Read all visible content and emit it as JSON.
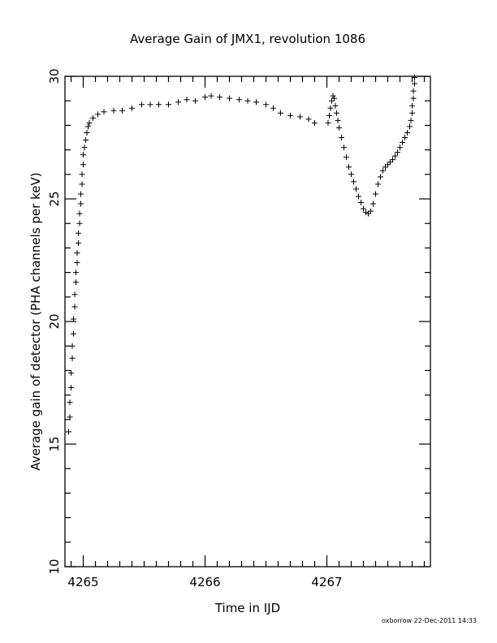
{
  "chart_data": {
    "type": "scatter",
    "title": "Average Gain of JMX1, revolution 1086",
    "xlabel": "Time in IJD",
    "ylabel": "Average gain of detector (PHA channels per keV)",
    "xlim": [
      4264.85,
      4267.85
    ],
    "ylim": [
      10,
      30
    ],
    "xticks": [
      4265,
      4266,
      4267
    ],
    "xtick_labels": [
      "4265",
      "4266",
      "4267"
    ],
    "yticks": [
      10,
      15,
      20,
      25,
      30
    ],
    "ytick_labels": [
      "10",
      "15",
      "20",
      "25",
      "30"
    ],
    "marker": "plus",
    "grid": false,
    "series": [
      {
        "points": [
          [
            4264.88,
            15.5
          ],
          [
            4264.89,
            16.1
          ],
          [
            4264.89,
            16.7
          ],
          [
            4264.9,
            17.3
          ],
          [
            4264.9,
            17.9
          ],
          [
            4264.91,
            18.5
          ],
          [
            4264.91,
            19.0
          ],
          [
            4264.92,
            19.5
          ],
          [
            4264.92,
            20.1
          ],
          [
            4264.93,
            20.6
          ],
          [
            4264.93,
            21.1
          ],
          [
            4264.94,
            21.6
          ],
          [
            4264.94,
            22.0
          ],
          [
            4264.95,
            22.4
          ],
          [
            4264.95,
            22.8
          ],
          [
            4264.96,
            23.2
          ],
          [
            4264.96,
            23.6
          ],
          [
            4264.97,
            24.0
          ],
          [
            4264.97,
            24.4
          ],
          [
            4264.98,
            24.8
          ],
          [
            4264.98,
            25.2
          ],
          [
            4264.99,
            25.6
          ],
          [
            4264.99,
            26.0
          ],
          [
            4265.0,
            26.4
          ],
          [
            4265.0,
            26.8
          ],
          [
            4265.01,
            27.1
          ],
          [
            4265.02,
            27.4
          ],
          [
            4265.03,
            27.7
          ],
          [
            4265.04,
            27.95
          ],
          [
            4265.05,
            28.1
          ],
          [
            4265.08,
            28.3
          ],
          [
            4265.12,
            28.45
          ],
          [
            4265.17,
            28.55
          ],
          [
            4265.25,
            28.6
          ],
          [
            4265.32,
            28.6
          ],
          [
            4265.4,
            28.7
          ],
          [
            4265.48,
            28.85
          ],
          [
            4265.55,
            28.85
          ],
          [
            4265.62,
            28.85
          ],
          [
            4265.7,
            28.85
          ],
          [
            4265.78,
            28.95
          ],
          [
            4265.85,
            29.05
          ],
          [
            4265.92,
            29.0
          ],
          [
            4266.0,
            29.15
          ],
          [
            4266.05,
            29.2
          ],
          [
            4266.12,
            29.15
          ],
          [
            4266.2,
            29.1
          ],
          [
            4266.28,
            29.05
          ],
          [
            4266.35,
            29.0
          ],
          [
            4266.42,
            28.95
          ],
          [
            4266.5,
            28.85
          ],
          [
            4266.56,
            28.7
          ],
          [
            4266.62,
            28.5
          ],
          [
            4266.7,
            28.4
          ],
          [
            4266.78,
            28.35
          ],
          [
            4266.85,
            28.25
          ],
          [
            4266.9,
            28.1
          ],
          [
            4267.01,
            28.1
          ],
          [
            4267.02,
            28.4
          ],
          [
            4267.03,
            28.7
          ],
          [
            4267.04,
            29.0
          ],
          [
            4267.05,
            29.2
          ],
          [
            4267.06,
            29.1
          ],
          [
            4267.07,
            28.8
          ],
          [
            4267.08,
            28.5
          ],
          [
            4267.09,
            28.2
          ],
          [
            4267.1,
            27.9
          ],
          [
            4267.12,
            27.5
          ],
          [
            4267.14,
            27.1
          ],
          [
            4267.16,
            26.7
          ],
          [
            4267.18,
            26.3
          ],
          [
            4267.2,
            26.0
          ],
          [
            4267.22,
            25.7
          ],
          [
            4267.24,
            25.4
          ],
          [
            4267.26,
            25.1
          ],
          [
            4267.28,
            24.85
          ],
          [
            4267.3,
            24.6
          ],
          [
            4267.32,
            24.45
          ],
          [
            4267.34,
            24.4
          ],
          [
            4267.36,
            24.5
          ],
          [
            4267.38,
            24.8
          ],
          [
            4267.4,
            25.2
          ],
          [
            4267.42,
            25.6
          ],
          [
            4267.44,
            25.9
          ],
          [
            4267.46,
            26.15
          ],
          [
            4267.48,
            26.3
          ],
          [
            4267.5,
            26.4
          ],
          [
            4267.52,
            26.5
          ],
          [
            4267.54,
            26.6
          ],
          [
            4267.56,
            26.75
          ],
          [
            4267.58,
            26.9
          ],
          [
            4267.6,
            27.1
          ],
          [
            4267.62,
            27.3
          ],
          [
            4267.64,
            27.5
          ],
          [
            4267.66,
            27.7
          ],
          [
            4267.68,
            27.95
          ],
          [
            4267.69,
            28.2
          ],
          [
            4267.7,
            28.5
          ],
          [
            4267.7,
            28.8
          ],
          [
            4267.71,
            29.1
          ],
          [
            4267.71,
            29.4
          ],
          [
            4267.72,
            29.7
          ],
          [
            4267.72,
            29.95
          ]
        ]
      }
    ]
  },
  "footer": "oxborrow 22-Dec-2011 14:33"
}
